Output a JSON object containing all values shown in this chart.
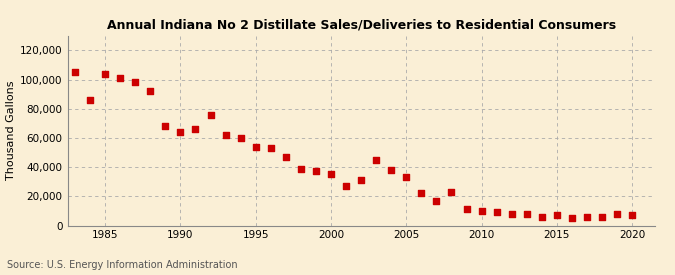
{
  "title": "Annual Indiana No 2 Distillate Sales/Deliveries to Residential Consumers",
  "ylabel": "Thousand Gallons",
  "source": "Source: U.S. Energy Information Administration",
  "background_color": "#faefd6",
  "marker_color": "#cc0000",
  "years": [
    1983,
    1984,
    1985,
    1986,
    1987,
    1988,
    1989,
    1990,
    1991,
    1992,
    1993,
    1994,
    1995,
    1996,
    1997,
    1998,
    1999,
    2000,
    2001,
    2002,
    2003,
    2004,
    2005,
    2006,
    2007,
    2008,
    2009,
    2010,
    2011,
    2012,
    2013,
    2014,
    2015,
    2016,
    2017,
    2018,
    2019,
    2020
  ],
  "values": [
    105000,
    86000,
    104000,
    101000,
    98000,
    92000,
    68000,
    64000,
    66000,
    76000,
    62000,
    60000,
    54000,
    53000,
    47000,
    39000,
    37000,
    35000,
    27000,
    31000,
    45000,
    38000,
    33000,
    22000,
    17000,
    23000,
    11000,
    10000,
    9000,
    8000,
    8000,
    6000,
    7000,
    5000,
    6000,
    6000,
    8000,
    7000
  ],
  "ylim": [
    0,
    130000
  ],
  "yticks": [
    0,
    20000,
    40000,
    60000,
    80000,
    100000,
    120000
  ],
  "xticks": [
    1985,
    1990,
    1995,
    2000,
    2005,
    2010,
    2015,
    2020
  ],
  "xlim": [
    1982.5,
    2021.5
  ]
}
